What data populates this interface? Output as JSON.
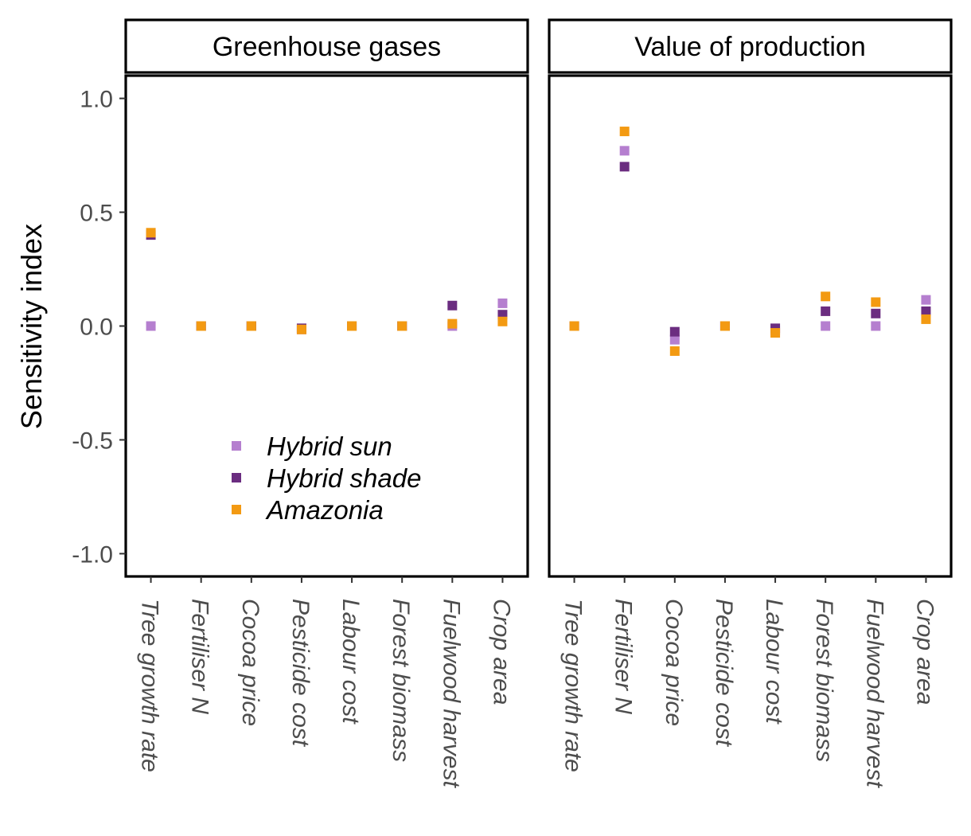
{
  "chart_data": {
    "type": "scatter",
    "ylabel": "Sensitivity index",
    "ylim": [
      -1.1,
      1.1
    ],
    "yticks": [
      1.0,
      0.5,
      0.0,
      -0.5,
      -1.0
    ],
    "ytick_labels": [
      "1.0",
      "0.5",
      "0.0",
      "-0.5",
      "-1.0"
    ],
    "categories": [
      "Tree growth rate",
      "Fertiliser N",
      "Cocoa price",
      "Pesticide cost",
      "Labour cost",
      "Forest biomass",
      "Fuelwood harvest",
      "Crop area"
    ],
    "legend": {
      "position": "bottom-left of first panel",
      "entries": [
        {
          "name": "Hybrid sun",
          "color": "#b57fcf"
        },
        {
          "name": "Hybrid shade",
          "color": "#6b2d80"
        },
        {
          "name": "Amazonia",
          "color": "#f39a12"
        }
      ]
    },
    "panels": [
      {
        "title": "Greenhouse gases",
        "series": [
          {
            "name": "Hybrid sun",
            "values": [
              0.0,
              0.0,
              0.0,
              -0.015,
              0.0,
              0.0,
              0.0,
              0.1
            ]
          },
          {
            "name": "Hybrid shade",
            "values": [
              0.4,
              0.0,
              0.0,
              -0.01,
              0.0,
              0.0,
              0.09,
              0.05
            ]
          },
          {
            "name": "Amazonia",
            "values": [
              0.41,
              0.0,
              0.0,
              -0.015,
              0.0,
              0.0,
              0.01,
              0.02
            ]
          }
        ]
      },
      {
        "title": "Value of production",
        "series": [
          {
            "name": "Hybrid sun",
            "values": [
              0.0,
              0.77,
              -0.06,
              0.0,
              -0.02,
              0.0,
              0.0,
              0.115
            ]
          },
          {
            "name": "Hybrid shade",
            "values": [
              0.0,
              0.7,
              -0.025,
              0.0,
              -0.01,
              0.065,
              0.055,
              0.065
            ]
          },
          {
            "name": "Amazonia",
            "values": [
              0.0,
              0.855,
              -0.11,
              0.0,
              -0.03,
              0.13,
              0.105,
              0.03
            ]
          }
        ]
      }
    ]
  }
}
